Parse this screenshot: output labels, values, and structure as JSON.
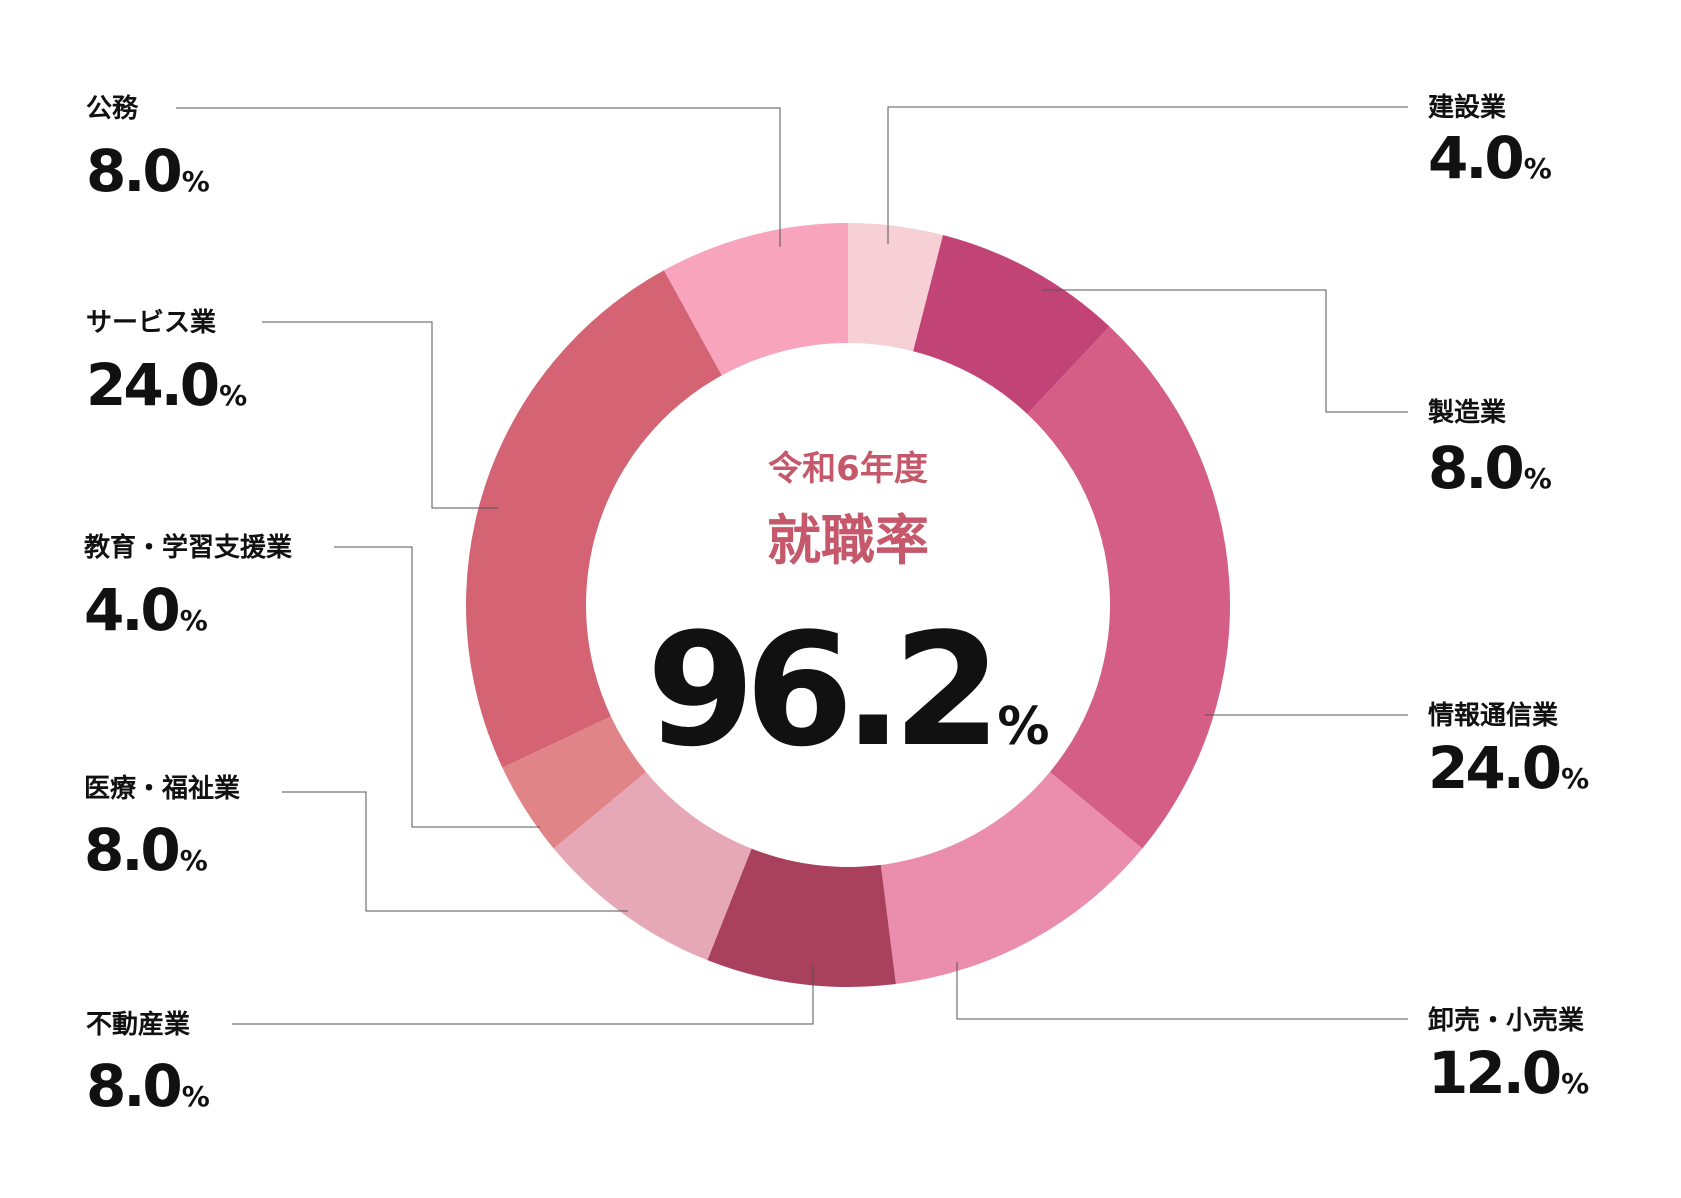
{
  "center": {
    "year_label": "令和6年度",
    "title": "就職率",
    "value": "96.2",
    "unit": "%"
  },
  "chart_data": {
    "type": "pie",
    "unit": "%",
    "slices": [
      {
        "label": "建設業",
        "value": 4.0,
        "value_text": "4.0",
        "color": "#f7d0d6"
      },
      {
        "label": "製造業",
        "value": 8.0,
        "value_text": "8.0",
        "color": "#c24477"
      },
      {
        "label": "情報通信業",
        "value": 24.0,
        "value_text": "24.0",
        "color": "#d45e85"
      },
      {
        "label": "卸売・小売業",
        "value": 12.0,
        "value_text": "12.0",
        "color": "#eb8eae"
      },
      {
        "label": "不動産業",
        "value": 8.0,
        "value_text": "8.0",
        "color": "#a8405e"
      },
      {
        "label": "医療・福祉業",
        "value": 8.0,
        "value_text": "8.0",
        "color": "#e6a8b6"
      },
      {
        "label": "教育・学習支援業",
        "value": 4.0,
        "value_text": "4.0",
        "color": "#e08487"
      },
      {
        "label": "サービス業",
        "value": 24.0,
        "value_text": "24.0",
        "color": "#d46473"
      },
      {
        "label": "公務",
        "value": 8.0,
        "value_text": "8.0",
        "color": "#f8a4bd"
      }
    ]
  }
}
